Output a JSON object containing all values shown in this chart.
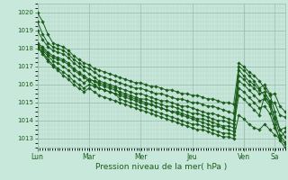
{
  "bg_color": "#c8e8dc",
  "grid_color_major": "#9bbfb0",
  "grid_color_minor": "#b0d4c5",
  "line_color": "#1a5c1a",
  "marker_color": "#1a5c1a",
  "xlabel_text": "Pression niveau de la mer( hPa )",
  "ylim": [
    1012.5,
    1020.5
  ],
  "yticks": [
    1013,
    1014,
    1015,
    1016,
    1017,
    1018,
    1019,
    1020
  ],
  "day_labels": [
    "Lun",
    "Mar",
    "Mer",
    "Jeu",
    "Ven",
    "Sa"
  ],
  "day_positions": [
    0.0,
    0.208,
    0.416,
    0.625,
    0.833,
    0.958
  ],
  "xlim": [
    0.0,
    1.0
  ],
  "lines": [
    [
      0.0,
      1020.0,
      0.021,
      1019.5,
      0.042,
      1018.8,
      0.063,
      1018.3,
      0.083,
      1018.2,
      0.104,
      1018.1,
      0.125,
      1017.9,
      0.146,
      1017.6,
      0.167,
      1017.4,
      0.188,
      1017.2,
      0.208,
      1017.1,
      0.229,
      1016.9,
      0.25,
      1016.8,
      0.271,
      1016.7,
      0.292,
      1016.6,
      0.313,
      1016.5,
      0.333,
      1016.4,
      0.354,
      1016.3,
      0.375,
      1016.2,
      0.396,
      1016.1,
      0.416,
      1016.1,
      0.438,
      1016.0,
      0.458,
      1015.9,
      0.479,
      1015.9,
      0.5,
      1015.8,
      0.521,
      1015.7,
      0.542,
      1015.7,
      0.563,
      1015.6,
      0.583,
      1015.5,
      0.604,
      1015.5,
      0.625,
      1015.4,
      0.646,
      1015.4,
      0.667,
      1015.3,
      0.688,
      1015.2,
      0.708,
      1015.2,
      0.729,
      1015.1,
      0.75,
      1015.0,
      0.771,
      1015.0,
      0.792,
      1014.9,
      0.813,
      1017.0,
      0.833,
      1016.8,
      0.854,
      1016.5,
      0.875,
      1016.2,
      0.896,
      1015.8,
      0.917,
      1016.0,
      0.938,
      1015.5,
      0.958,
      1014.5,
      0.979,
      1013.5,
      1.0,
      1013.1
    ],
    [
      0.0,
      1019.5,
      0.021,
      1018.8,
      0.042,
      1018.3,
      0.063,
      1018.1,
      0.083,
      1018.0,
      0.104,
      1017.9,
      0.125,
      1017.7,
      0.146,
      1017.4,
      0.167,
      1017.2,
      0.188,
      1017.0,
      0.208,
      1016.9,
      0.229,
      1016.7,
      0.25,
      1016.5,
      0.271,
      1016.4,
      0.292,
      1016.3,
      0.313,
      1016.2,
      0.333,
      1016.1,
      0.354,
      1016.0,
      0.375,
      1015.9,
      0.396,
      1015.8,
      0.416,
      1015.8,
      0.438,
      1015.7,
      0.458,
      1015.6,
      0.479,
      1015.5,
      0.5,
      1015.5,
      0.521,
      1015.4,
      0.542,
      1015.3,
      0.563,
      1015.2,
      0.583,
      1015.2,
      0.604,
      1015.1,
      0.625,
      1015.0,
      0.646,
      1015.0,
      0.667,
      1014.9,
      0.688,
      1014.8,
      0.708,
      1014.8,
      0.729,
      1014.7,
      0.75,
      1014.6,
      0.771,
      1014.5,
      0.792,
      1014.4,
      0.813,
      1016.5,
      0.833,
      1016.3,
      0.854,
      1016.0,
      0.875,
      1015.8,
      0.896,
      1015.5,
      0.917,
      1015.6,
      0.938,
      1015.1,
      0.958,
      1014.1,
      0.979,
      1013.2,
      1.0,
      1012.8
    ],
    [
      0.0,
      1019.0,
      0.021,
      1018.5,
      0.042,
      1018.1,
      0.063,
      1017.9,
      0.083,
      1017.8,
      0.104,
      1017.7,
      0.125,
      1017.5,
      0.146,
      1017.2,
      0.167,
      1017.0,
      0.188,
      1016.8,
      0.208,
      1016.6,
      0.229,
      1016.4,
      0.25,
      1016.2,
      0.271,
      1016.1,
      0.292,
      1016.0,
      0.313,
      1015.9,
      0.333,
      1015.8,
      0.354,
      1015.7,
      0.375,
      1015.6,
      0.396,
      1015.5,
      0.416,
      1015.5,
      0.438,
      1015.4,
      0.458,
      1015.3,
      0.479,
      1015.2,
      0.5,
      1015.1,
      0.521,
      1015.1,
      0.542,
      1015.0,
      0.563,
      1014.9,
      0.583,
      1014.8,
      0.604,
      1014.8,
      0.625,
      1014.7,
      0.646,
      1014.6,
      0.667,
      1014.5,
      0.688,
      1014.4,
      0.708,
      1014.4,
      0.729,
      1014.3,
      0.75,
      1014.2,
      0.771,
      1014.1,
      0.792,
      1014.0,
      0.813,
      1016.2,
      0.833,
      1016.0,
      0.854,
      1015.7,
      0.875,
      1015.4,
      0.896,
      1015.1,
      0.917,
      1015.2,
      0.938,
      1014.8,
      0.958,
      1013.8,
      0.979,
      1012.9,
      1.0,
      1012.5
    ],
    [
      0.0,
      1018.3,
      0.021,
      1018.1,
      0.042,
      1017.8,
      0.063,
      1017.6,
      0.083,
      1017.5,
      0.104,
      1017.4,
      0.125,
      1017.2,
      0.146,
      1016.9,
      0.167,
      1016.7,
      0.188,
      1016.5,
      0.208,
      1016.3,
      0.229,
      1016.2,
      0.25,
      1016.0,
      0.271,
      1015.9,
      0.292,
      1015.8,
      0.313,
      1015.7,
      0.333,
      1015.6,
      0.354,
      1015.5,
      0.375,
      1015.4,
      0.396,
      1015.3,
      0.416,
      1015.2,
      0.438,
      1015.2,
      0.458,
      1015.1,
      0.479,
      1015.0,
      0.5,
      1014.9,
      0.521,
      1014.8,
      0.542,
      1014.8,
      0.563,
      1014.7,
      0.583,
      1014.6,
      0.604,
      1014.5,
      0.625,
      1014.4,
      0.646,
      1014.4,
      0.667,
      1014.3,
      0.688,
      1014.2,
      0.708,
      1014.1,
      0.729,
      1014.0,
      0.75,
      1014.0,
      0.771,
      1013.9,
      0.792,
      1013.8,
      0.813,
      1015.8,
      0.833,
      1015.6,
      0.854,
      1015.3,
      0.875,
      1015.0,
      0.896,
      1014.7,
      0.917,
      1014.8,
      0.938,
      1014.4,
      0.958,
      1013.6,
      0.979,
      1013.0,
      1.0,
      1012.7
    ],
    [
      0.0,
      1018.2,
      0.021,
      1018.0,
      0.042,
      1017.7,
      0.063,
      1017.5,
      0.083,
      1017.4,
      0.104,
      1017.3,
      0.125,
      1017.1,
      0.146,
      1016.8,
      0.167,
      1016.6,
      0.188,
      1016.4,
      0.208,
      1016.2,
      0.229,
      1016.0,
      0.25,
      1015.8,
      0.271,
      1015.7,
      0.292,
      1015.6,
      0.313,
      1015.5,
      0.333,
      1015.4,
      0.354,
      1015.3,
      0.375,
      1015.2,
      0.396,
      1015.1,
      0.416,
      1015.0,
      0.438,
      1014.9,
      0.458,
      1014.9,
      0.479,
      1014.8,
      0.5,
      1014.7,
      0.521,
      1014.6,
      0.542,
      1014.5,
      0.563,
      1014.5,
      0.583,
      1014.4,
      0.604,
      1014.3,
      0.625,
      1014.2,
      0.646,
      1014.1,
      0.667,
      1014.1,
      0.688,
      1014.0,
      0.708,
      1013.9,
      0.729,
      1013.8,
      0.75,
      1013.7,
      0.771,
      1013.7,
      0.792,
      1013.6,
      0.813,
      1015.4,
      0.833,
      1015.2,
      0.854,
      1014.9,
      0.875,
      1014.6,
      0.896,
      1014.3,
      0.917,
      1015.4,
      0.938,
      1014.9,
      0.958,
      1014.2,
      0.979,
      1013.5,
      1.0,
      1013.6
    ],
    [
      0.0,
      1018.1,
      0.021,
      1017.9,
      0.042,
      1017.6,
      0.063,
      1017.3,
      0.083,
      1017.2,
      0.104,
      1017.0,
      0.125,
      1016.8,
      0.146,
      1016.5,
      0.167,
      1016.3,
      0.188,
      1016.1,
      0.208,
      1016.3,
      0.229,
      1016.2,
      0.25,
      1016.1,
      0.271,
      1016.0,
      0.292,
      1015.9,
      0.313,
      1015.8,
      0.333,
      1015.5,
      0.354,
      1015.4,
      0.375,
      1015.3,
      0.396,
      1015.2,
      0.416,
      1015.1,
      0.438,
      1015.0,
      0.458,
      1014.9,
      0.479,
      1014.8,
      0.5,
      1014.7,
      0.521,
      1014.6,
      0.542,
      1014.5,
      0.563,
      1014.4,
      0.583,
      1014.3,
      0.604,
      1014.2,
      0.625,
      1014.1,
      0.646,
      1014.0,
      0.667,
      1013.9,
      0.688,
      1013.8,
      0.708,
      1013.7,
      0.729,
      1013.7,
      0.75,
      1013.6,
      0.771,
      1013.5,
      0.792,
      1013.4,
      0.813,
      1017.2,
      0.833,
      1017.0,
      0.854,
      1016.7,
      0.875,
      1016.5,
      0.896,
      1016.2,
      0.917,
      1015.8,
      0.938,
      1015.4,
      0.958,
      1015.5,
      0.979,
      1014.8,
      1.0,
      1014.5
    ],
    [
      0.0,
      1018.0,
      0.021,
      1017.8,
      0.042,
      1017.4,
      0.063,
      1017.1,
      0.083,
      1016.9,
      0.104,
      1016.7,
      0.125,
      1016.5,
      0.146,
      1016.2,
      0.167,
      1016.0,
      0.188,
      1015.8,
      0.208,
      1016.0,
      0.229,
      1015.9,
      0.25,
      1015.8,
      0.271,
      1015.7,
      0.292,
      1015.6,
      0.313,
      1015.5,
      0.333,
      1015.2,
      0.354,
      1015.1,
      0.375,
      1015.0,
      0.396,
      1014.9,
      0.416,
      1014.8,
      0.438,
      1014.7,
      0.458,
      1014.6,
      0.479,
      1014.5,
      0.5,
      1014.4,
      0.521,
      1014.3,
      0.542,
      1014.2,
      0.563,
      1014.1,
      0.583,
      1014.0,
      0.604,
      1013.9,
      0.625,
      1013.8,
      0.646,
      1013.8,
      0.667,
      1013.7,
      0.688,
      1013.6,
      0.708,
      1013.5,
      0.729,
      1013.4,
      0.75,
      1013.3,
      0.771,
      1013.3,
      0.792,
      1013.2,
      0.813,
      1016.8,
      0.833,
      1016.5,
      0.854,
      1016.2,
      0.875,
      1016.0,
      0.896,
      1015.7,
      0.917,
      1015.4,
      0.938,
      1015.0,
      0.958,
      1015.0,
      0.979,
      1014.3,
      1.0,
      1014.2
    ],
    [
      0.0,
      1018.1,
      0.021,
      1017.7,
      0.042,
      1017.3,
      0.063,
      1017.0,
      0.083,
      1016.8,
      0.104,
      1016.5,
      0.125,
      1016.3,
      0.146,
      1016.0,
      0.167,
      1015.8,
      0.188,
      1015.6,
      0.208,
      1015.8,
      0.229,
      1015.6,
      0.25,
      1015.4,
      0.271,
      1015.3,
      0.292,
      1015.2,
      0.313,
      1015.1,
      0.333,
      1015.0,
      0.354,
      1014.9,
      0.375,
      1014.8,
      0.396,
      1014.7,
      0.416,
      1014.6,
      0.438,
      1014.5,
      0.458,
      1014.4,
      0.479,
      1014.3,
      0.5,
      1014.2,
      0.521,
      1014.1,
      0.542,
      1014.0,
      0.563,
      1013.9,
      0.583,
      1013.8,
      0.604,
      1013.7,
      0.625,
      1013.6,
      0.646,
      1013.5,
      0.667,
      1013.5,
      0.688,
      1013.4,
      0.708,
      1013.3,
      0.729,
      1013.2,
      0.75,
      1013.1,
      0.771,
      1013.1,
      0.792,
      1013.0,
      0.813,
      1014.3,
      0.833,
      1014.1,
      0.854,
      1013.8,
      0.875,
      1013.6,
      0.896,
      1013.5,
      0.917,
      1013.8,
      0.938,
      1013.5,
      0.958,
      1013.2,
      0.979,
      1013.0,
      1.0,
      1013.4
    ]
  ]
}
